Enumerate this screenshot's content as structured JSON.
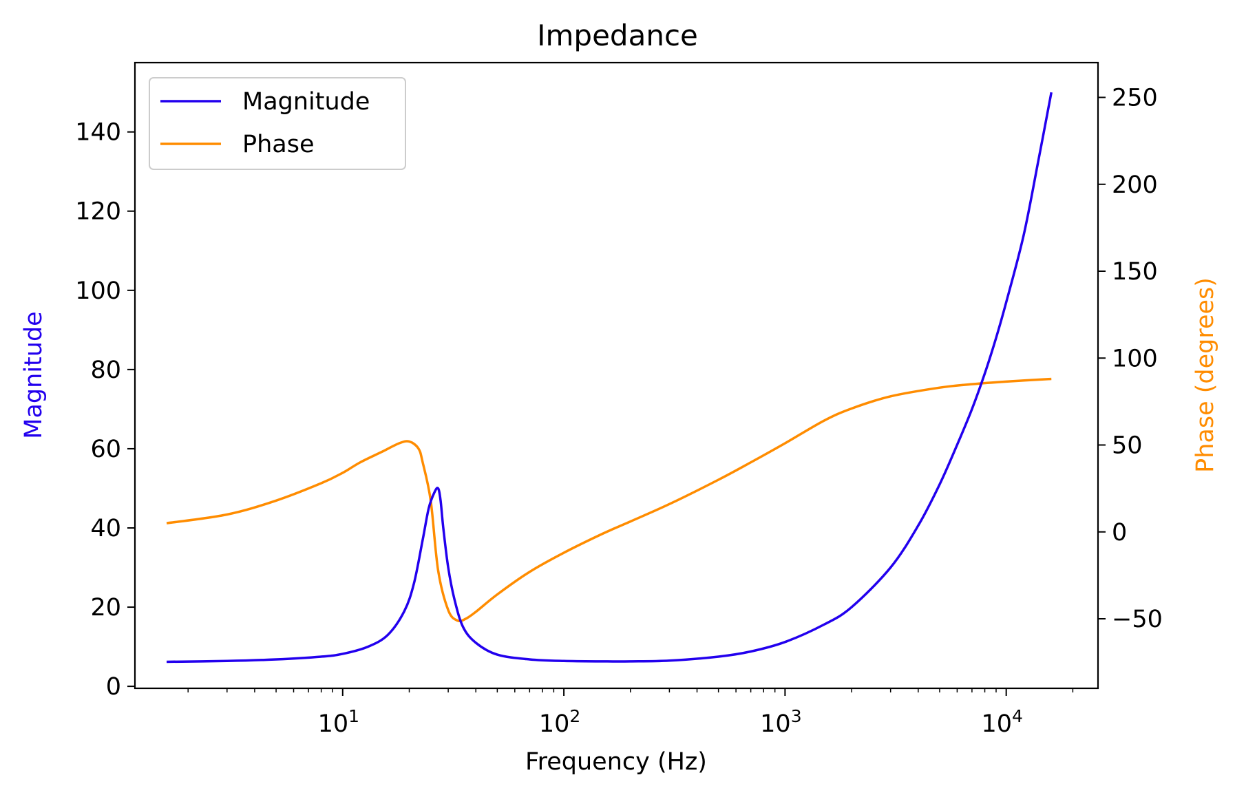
{
  "chart_data": {
    "type": "line",
    "title": "Impedance",
    "xlabel": "Frequency (Hz)",
    "ylabel_left": "Magnitude",
    "ylabel_right": "Phase (degrees)",
    "x_scale": "log",
    "xlim": [
      1.15,
      26000
    ],
    "ylim_left": [
      -0.5,
      157.5
    ],
    "ylim_right": [
      -90,
      270
    ],
    "grid": false,
    "legend_position": "top-left",
    "x_tick_labels": [
      {
        "base": "10",
        "exp": "1",
        "value": 10
      },
      {
        "base": "10",
        "exp": "2",
        "value": 100
      },
      {
        "base": "10",
        "exp": "3",
        "value": 1000
      },
      {
        "base": "10",
        "exp": "4",
        "value": 10000
      }
    ],
    "y_left_ticks": [
      0,
      20,
      40,
      60,
      80,
      100,
      120,
      140
    ],
    "y_left_tick_labels": [
      "0",
      "20",
      "40",
      "60",
      "80",
      "100",
      "120",
      "140"
    ],
    "y_right_ticks": [
      -50,
      0,
      50,
      100,
      150,
      200,
      250
    ],
    "y_right_tick_labels": [
      "−50",
      "0",
      "50",
      "100",
      "150",
      "200",
      "250"
    ],
    "colors": {
      "magnitude": "#2200ee",
      "phase": "#ff8c00",
      "axis": "#000000"
    },
    "series": [
      {
        "name": "Magnitude",
        "axis": "left",
        "color": "#2200ee",
        "x": [
          1.6,
          3,
          5,
          8,
          10,
          13,
          16,
          19,
          21,
          23,
          24.5,
          26,
          27,
          27.7,
          28.5,
          30,
          32,
          35,
          40,
          50,
          70,
          100,
          150,
          200,
          300,
          500,
          700,
          1000,
          1500,
          2000,
          3000,
          4000,
          5000,
          6000,
          7000,
          8000,
          9000,
          10000,
          12000,
          14000,
          16000
        ],
        "y": [
          6.2,
          6.4,
          6.8,
          7.5,
          8.2,
          10,
          13,
          19,
          26,
          37,
          45,
          49,
          50,
          47,
          40,
          30,
          22,
          15,
          11,
          8,
          6.8,
          6.4,
          6.3,
          6.3,
          6.5,
          7.5,
          8.8,
          11.2,
          15.6,
          20,
          30,
          40.6,
          51,
          61,
          70,
          79,
          88,
          97,
          114,
          133,
          150
        ]
      },
      {
        "name": "Phase",
        "axis": "right",
        "color": "#ff8c00",
        "x": [
          1.6,
          3,
          5,
          8,
          10,
          12,
          15,
          18,
          20,
          22,
          23,
          25,
          27,
          30,
          33,
          36,
          40,
          50,
          70,
          100,
          150,
          200,
          300,
          500,
          700,
          1000,
          1500,
          2000,
          3000,
          5000,
          7000,
          10000,
          16000
        ],
        "y": [
          5,
          10,
          18,
          28,
          34,
          40,
          46,
          51,
          52,
          48,
          40,
          18,
          -22,
          -45,
          -51,
          -50,
          -46,
          -36,
          -23,
          -12,
          -1,
          6,
          16,
          30,
          40,
          51,
          64,
          71,
          78,
          83,
          85,
          86.5,
          88
        ]
      }
    ]
  }
}
